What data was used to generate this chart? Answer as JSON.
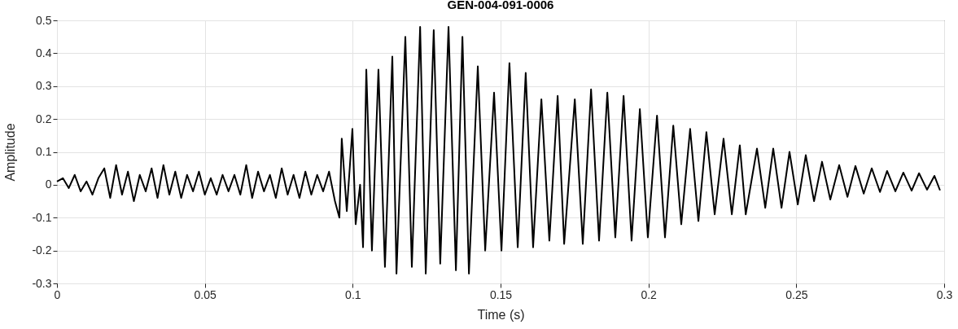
{
  "chart_data": {
    "type": "line",
    "title": "GEN-004-091-0006",
    "xlabel": "Time (s)",
    "ylabel": "Amplitude",
    "color": "#000000",
    "grid": true,
    "xlim": [
      0,
      0.3
    ],
    "ylim": [
      -0.3,
      0.5
    ],
    "xticks": [
      0,
      0.05,
      0.1,
      0.15,
      0.2,
      0.25,
      0.3
    ],
    "yticks": [
      -0.3,
      -0.2,
      -0.1,
      0,
      0.1,
      0.2,
      0.3,
      0.4,
      0.5
    ],
    "x": [
      0,
      0.002,
      0.004,
      0.006,
      0.008,
      0.01,
      0.012,
      0.014,
      0.016,
      0.018,
      0.02,
      0.022,
      0.024,
      0.026,
      0.028,
      0.03,
      0.032,
      0.034,
      0.036,
      0.038,
      0.04,
      0.042,
      0.044,
      0.046,
      0.048,
      0.05,
      0.052,
      0.054,
      0.056,
      0.058,
      0.06,
      0.062,
      0.064,
      0.066,
      0.068,
      0.07,
      0.072,
      0.074,
      0.076,
      0.078,
      0.08,
      0.082,
      0.084,
      0.086,
      0.088,
      0.09,
      0.092,
      0.094,
      0.0955,
      0.0963,
      0.098,
      0.0999,
      0.101,
      0.1025,
      0.1035,
      0.1046,
      0.1065,
      0.1087,
      0.1109,
      0.1134,
      0.1148,
      0.1178,
      0.12,
      0.1228,
      0.1247,
      0.1274,
      0.1296,
      0.1324,
      0.1349,
      0.1371,
      0.1393,
      0.1423,
      0.1448,
      0.1478,
      0.1503,
      0.153,
      0.1558,
      0.1585,
      0.161,
      0.1638,
      0.1665,
      0.1693,
      0.1715,
      0.1751,
      0.1778,
      0.1806,
      0.1833,
      0.1861,
      0.1888,
      0.1916,
      0.1943,
      0.1971,
      0.1998,
      0.2029,
      0.2056,
      0.2084,
      0.2111,
      0.2141,
      0.2169,
      0.2196,
      0.2224,
      0.2254,
      0.2282,
      0.2309,
      0.2329,
      0.2367,
      0.2395,
      0.2422,
      0.245,
      0.2477,
      0.2505,
      0.2532,
      0.256,
      0.2587,
      0.2615,
      0.2645,
      0.2673,
      0.27,
      0.2728,
      0.2755,
      0.2783,
      0.2807,
      0.2835,
      0.2862,
      0.289,
      0.2915,
      0.2942,
      0.2967,
      0.2986
    ],
    "values": [
      0.01,
      0.02,
      -0.01,
      0.03,
      -0.02,
      0.01,
      -0.03,
      0.02,
      0.05,
      -0.04,
      0.06,
      -0.03,
      0.04,
      -0.05,
      0.03,
      -0.02,
      0.05,
      -0.04,
      0.06,
      -0.03,
      0.04,
      -0.04,
      0.03,
      -0.02,
      0.04,
      -0.03,
      0.02,
      -0.03,
      0.03,
      -0.02,
      0.03,
      -0.03,
      0.06,
      -0.04,
      0.04,
      -0.02,
      0.03,
      -0.04,
      0.05,
      -0.03,
      0.03,
      -0.04,
      0.04,
      -0.03,
      0.03,
      -0.02,
      0.04,
      -0.05,
      -0.1,
      0.14,
      -0.08,
      0.17,
      -0.12,
      0.0,
      -0.19,
      0.35,
      -0.2,
      0.35,
      -0.25,
      0.39,
      -0.27,
      0.45,
      -0.25,
      0.48,
      -0.27,
      0.47,
      -0.24,
      0.48,
      -0.26,
      0.45,
      -0.27,
      0.36,
      -0.2,
      0.28,
      -0.2,
      0.37,
      -0.19,
      0.34,
      -0.19,
      0.26,
      -0.17,
      0.27,
      -0.18,
      0.26,
      -0.18,
      0.29,
      -0.17,
      0.28,
      -0.16,
      0.27,
      -0.17,
      0.23,
      -0.16,
      0.21,
      -0.16,
      0.18,
      -0.12,
      0.17,
      -0.11,
      0.16,
      -0.09,
      0.14,
      -0.09,
      0.12,
      -0.09,
      0.11,
      -0.07,
      0.11,
      -0.07,
      0.1,
      -0.06,
      0.09,
      -0.05,
      0.07,
      -0.045,
      0.06,
      -0.037,
      0.057,
      -0.027,
      0.05,
      -0.022,
      0.042,
      -0.02,
      0.037,
      -0.018,
      0.035,
      -0.015,
      0.027,
      -0.017
    ]
  }
}
